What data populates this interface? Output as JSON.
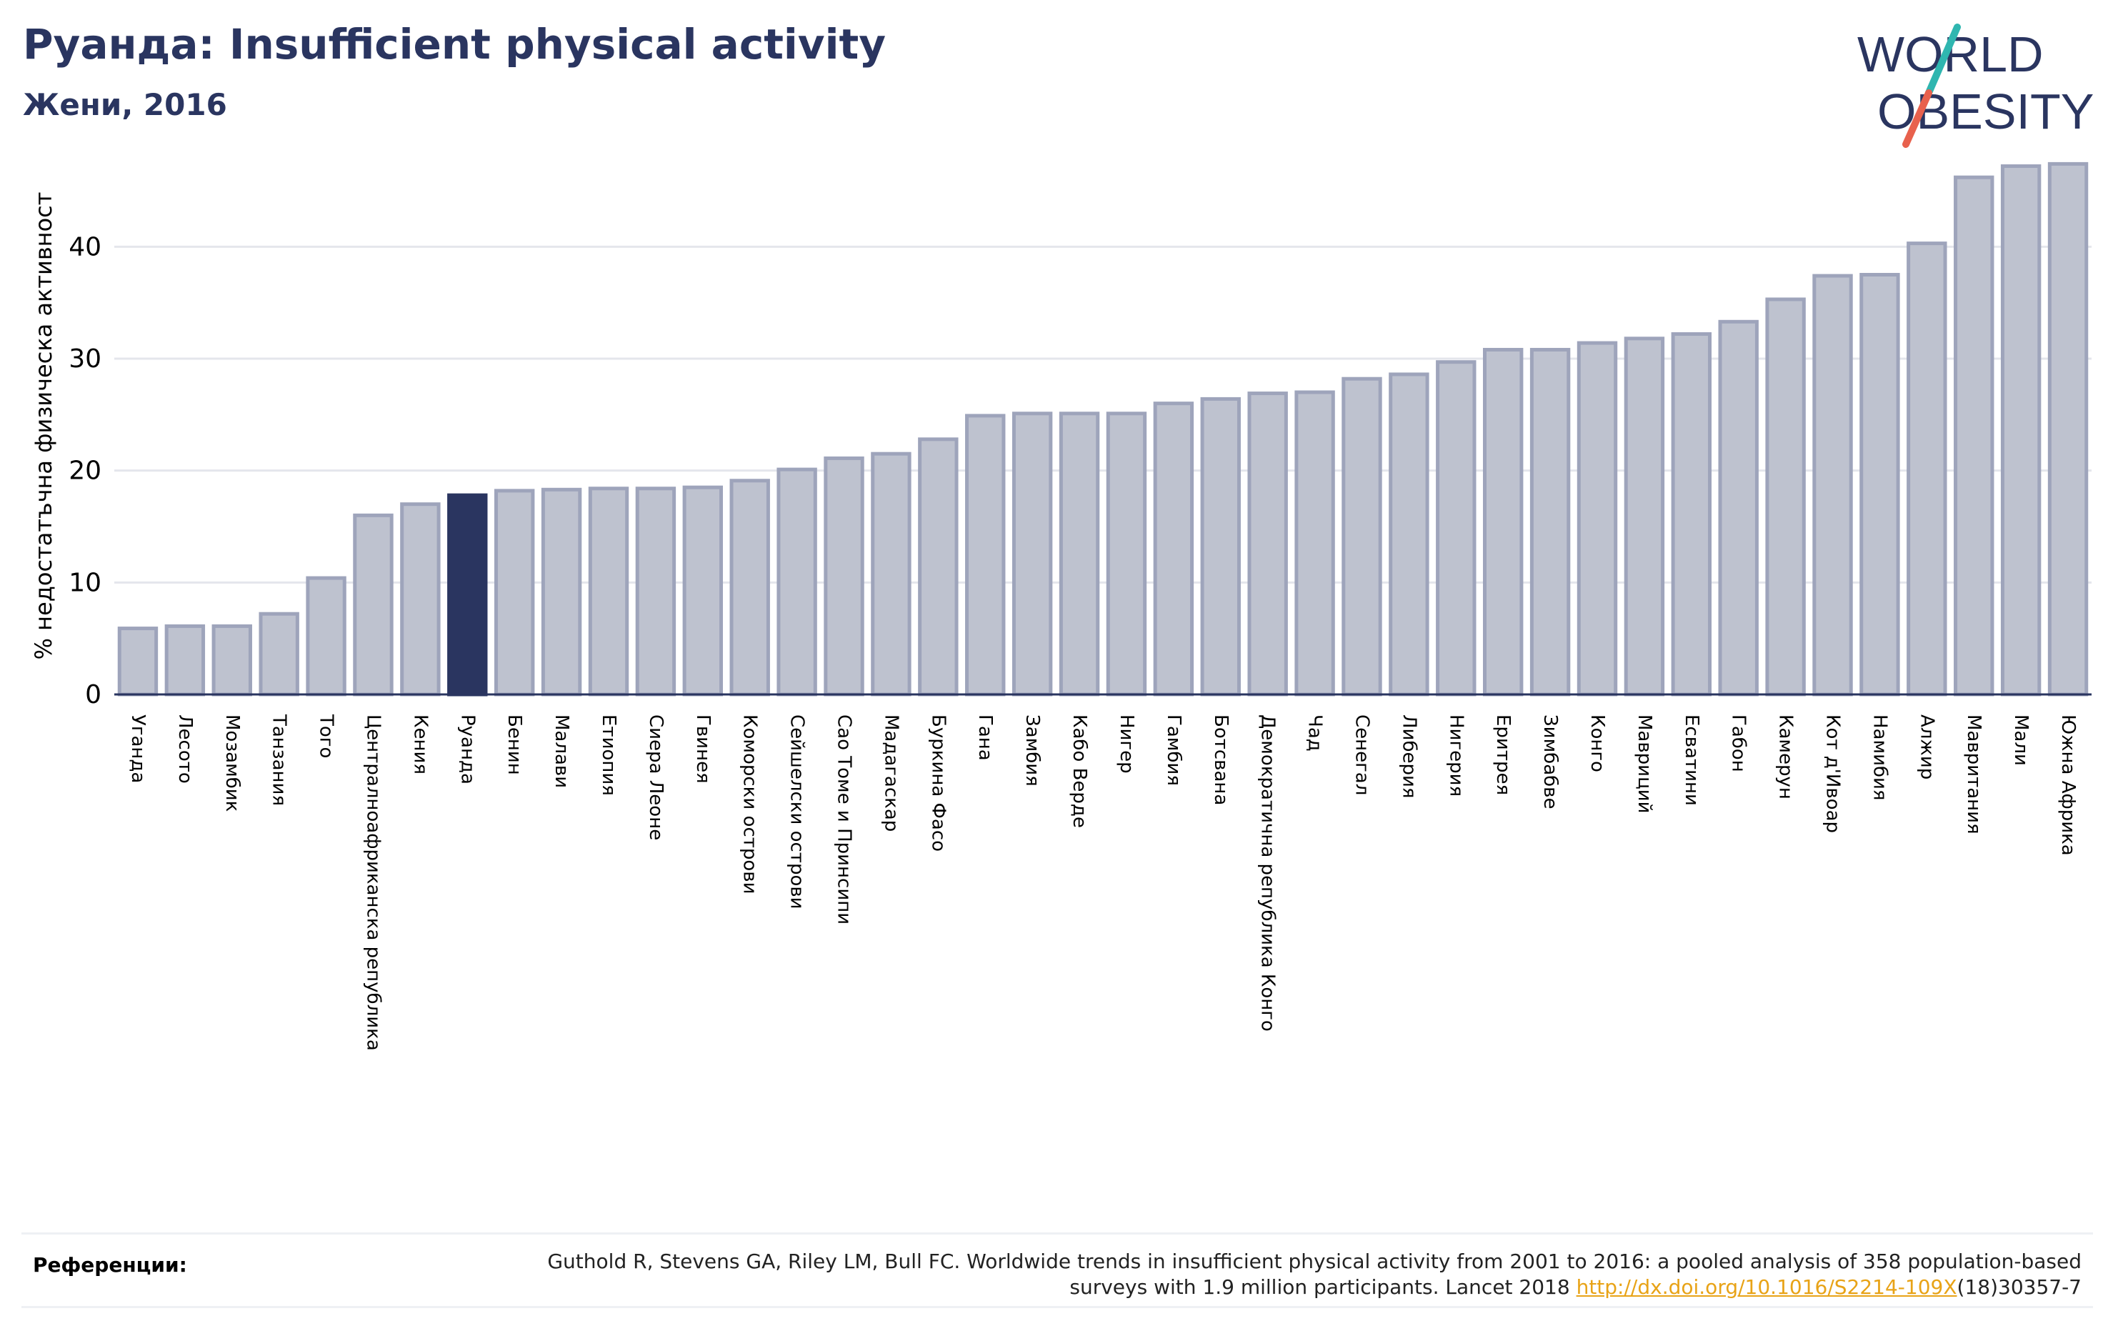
{
  "header": {
    "title": "Руанда: Insufficient physical activity",
    "subtitle": "Жени, 2016"
  },
  "logo": {
    "line1": "WORLD",
    "line2": "OBESITY",
    "text_color": "#2a3560",
    "slash_colors": [
      "#2fb6b0",
      "#e8614d"
    ]
  },
  "chart_data": {
    "type": "bar",
    "ylabel": "% недостатъчна физическа активност",
    "ylim": [
      0,
      48
    ],
    "yticks": [
      0,
      10,
      20,
      30,
      40
    ],
    "grid": true,
    "highlight": "Руанда",
    "colors": {
      "bar": "#bec2cf",
      "bar_edge": "#9ea4bb",
      "highlight": "#2a3560"
    },
    "categories": [
      "Уганда",
      "Лесото",
      "Мозамбик",
      "Танзания",
      "Того",
      "Централноафриканска република",
      "Кения",
      "Руанда",
      "Бенин",
      "Малави",
      "Етиопия",
      "Сиера Леоне",
      "Гвинея",
      "Коморски острови",
      "Сейшелски острови",
      "Сао Томе и Принсипи",
      "Мадагаскар",
      "Буркина Фасо",
      "Гана",
      "Замбия",
      "Кабо Верде",
      "Нигер",
      "Гамбия",
      "Ботсвана",
      "Демократична република Конго",
      "Чад",
      "Сенегал",
      "Либерия",
      "Нигерия",
      "Еритрея",
      "Зимбабве",
      "Конго",
      "Мавриций",
      "Есватини",
      "Габон",
      "Камерун",
      "Кот д'Ивоар",
      "Намибия",
      "Алжир",
      "Мавритания",
      "Мали",
      "Южна Африка"
    ],
    "values": [
      5.9,
      6.1,
      6.1,
      7.2,
      10.4,
      16.0,
      17.0,
      17.8,
      18.2,
      18.3,
      18.4,
      18.4,
      18.5,
      19.1,
      20.1,
      21.1,
      21.5,
      22.8,
      24.9,
      25.1,
      25.1,
      25.1,
      26.0,
      26.4,
      26.9,
      27.0,
      28.2,
      28.6,
      29.7,
      30.8,
      30.8,
      31.4,
      31.8,
      32.2,
      33.3,
      35.3,
      37.4,
      37.5,
      40.3,
      46.2,
      47.2,
      47.4
    ]
  },
  "references": {
    "label": "Референции:",
    "text_before": "Guthold R, Stevens GA, Riley LM, Bull FC. Worldwide trends in insufficient physical activity from 2001 to 2016: a pooled analysis of 358 population-based surveys with 1.9 million participants. Lancet 2018 ",
    "link": "http://dx.doi.org/10.1016/S2214-109X",
    "text_after": "(18)30357-7"
  }
}
